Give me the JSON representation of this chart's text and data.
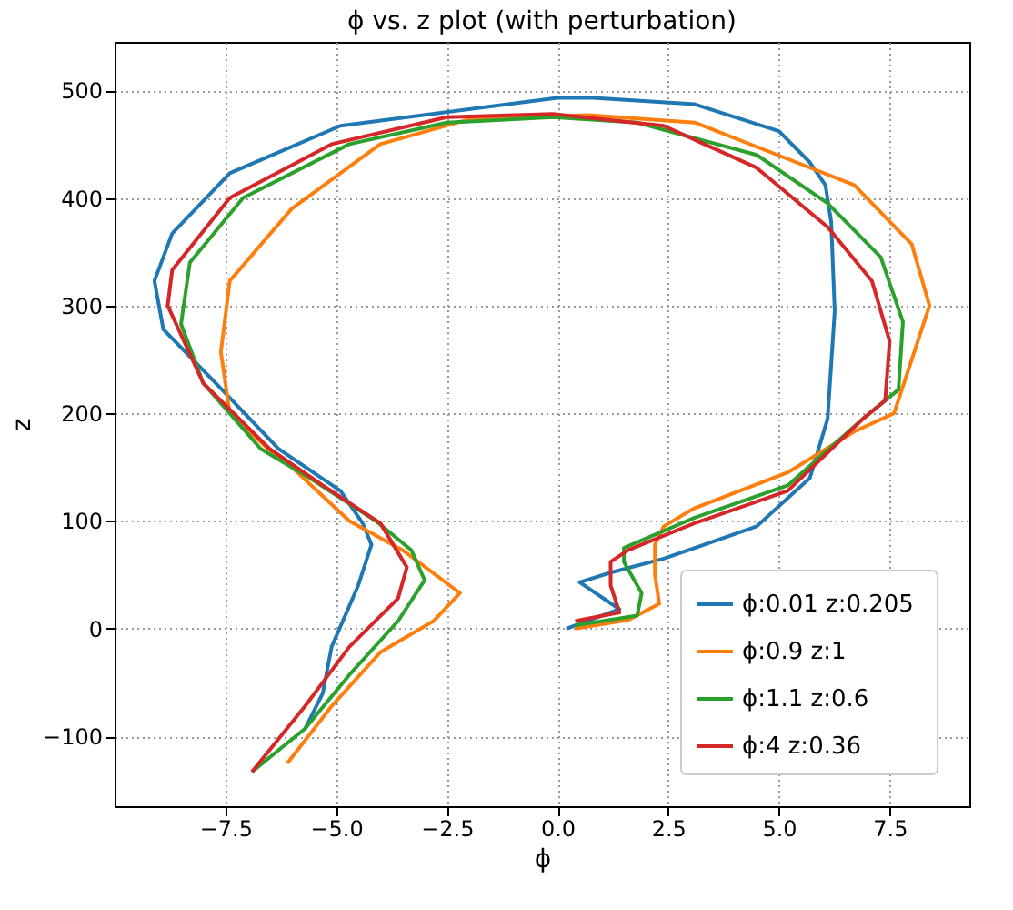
{
  "chart_data": {
    "type": "line",
    "title": "ϕ vs. z plot (with perturbation)",
    "xlabel": "ϕ",
    "ylabel": "z",
    "xlim": [
      -10,
      9.3
    ],
    "ylim": [
      -165,
      545
    ],
    "xticks": [
      {
        "value": -7.5,
        "label": "−7.5"
      },
      {
        "value": -5,
        "label": "−5.0"
      },
      {
        "value": -2.5,
        "label": "−2.5"
      },
      {
        "value": 0,
        "label": "0.0"
      },
      {
        "value": 2.5,
        "label": "2.5"
      },
      {
        "value": 5,
        "label": "5.0"
      },
      {
        "value": 7.5,
        "label": "7.5"
      }
    ],
    "yticks": [
      {
        "value": -100,
        "label": "−100"
      },
      0,
      100,
      200,
      300,
      400,
      500
    ],
    "grid": true,
    "legend": "bottom right",
    "line_style": "solid",
    "marker": "none",
    "series": [
      {
        "name": "ϕ:0.01  z:0.205",
        "color": "#1f77b4",
        "x": [
          0.2,
          1.4,
          0.5,
          1.2,
          2.4,
          4.5,
          5.7,
          6.1,
          6.26,
          6.18,
          6.05,
          5.7,
          5.0,
          3.1,
          0.8,
          0,
          -4.9,
          -7.4,
          -8.7,
          -9.1,
          -8.9,
          -7.6,
          -6.3,
          -4.9,
          -4.4,
          -4.2,
          -4.5,
          -5.1,
          -5.3,
          -5.7
        ],
        "values": [
          0,
          18,
          43,
          52,
          65,
          95,
          140,
          195,
          295,
          378,
          412,
          433,
          462,
          487,
          493,
          493,
          467,
          423,
          367,
          323,
          278,
          223,
          167,
          128,
          98,
          78,
          40,
          -17,
          -60,
          -93
        ]
      },
      {
        "name": "ϕ:0.9  z:1",
        "color": "#ff7f0e",
        "x": [
          0.4,
          1.6,
          2.3,
          2.2,
          2.2,
          2.4,
          3.1,
          5.2,
          6.7,
          7.6,
          8.4,
          8.0,
          6.7,
          5.4,
          3.1,
          0.7,
          -2.0,
          -4.0,
          -6.0,
          -7.4,
          -7.6,
          -7.4,
          -6.3,
          -6.0,
          -4.7,
          -3.5,
          -2.2,
          -2.8,
          -4.0,
          -5.1,
          -6.1
        ],
        "values": [
          0,
          8,
          23,
          50,
          78,
          95,
          112,
          145,
          183,
          200,
          300,
          357,
          412,
          433,
          470,
          477,
          473,
          450,
          390,
          323,
          257,
          200,
          158,
          150,
          100,
          73,
          33,
          7,
          -22,
          -72,
          -125
        ]
      },
      {
        "name": "ϕ:1.1  z:0.6",
        "color": "#2ca02c",
        "x": [
          0.4,
          1.8,
          1.9,
          1.5,
          1.5,
          3.1,
          5.2,
          6.9,
          7.7,
          7.8,
          7.3,
          6.1,
          4.5,
          1.8,
          -0.1,
          -2.5,
          -4.7,
          -7.1,
          -8.3,
          -8.5,
          -8.0,
          -6.7,
          -5.6,
          -4.1,
          -3.3,
          -3.0,
          -3.6,
          -4.7,
          -5.7,
          -6.9
        ],
        "values": [
          3,
          12,
          33,
          62,
          75,
          103,
          133,
          195,
          222,
          285,
          345,
          395,
          440,
          470,
          475,
          470,
          450,
          400,
          340,
          283,
          228,
          167,
          140,
          100,
          73,
          45,
          7,
          -43,
          -93,
          -133
        ]
      },
      {
        "name": "ϕ:4  z:0.36",
        "color": "#d62728",
        "x": [
          0.4,
          1.4,
          1.2,
          1.2,
          1.6,
          3.1,
          5.2,
          6.9,
          7.4,
          7.5,
          7.1,
          6.1,
          4.5,
          2.4,
          -0.1,
          -2.5,
          -5.1,
          -7.4,
          -8.7,
          -8.8,
          -8.0,
          -6.5,
          -5.3,
          -4.0,
          -3.4,
          -3.6,
          -4.7,
          -5.7,
          -6.9
        ],
        "values": [
          7,
          15,
          40,
          62,
          73,
          98,
          128,
          195,
          212,
          267,
          323,
          373,
          428,
          467,
          478,
          475,
          450,
          400,
          333,
          300,
          228,
          167,
          133,
          98,
          57,
          28,
          -17,
          -72,
          -133
        ]
      }
    ]
  }
}
